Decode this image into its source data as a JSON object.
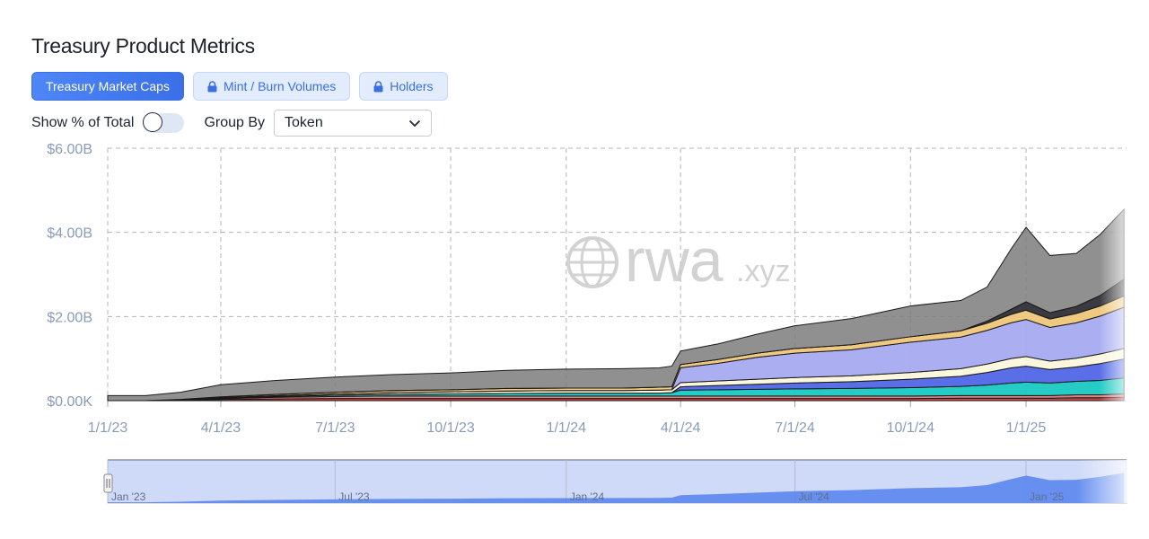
{
  "header": {
    "title": "Treasury Product Metrics"
  },
  "tabs": [
    {
      "label": "Treasury Market Caps",
      "locked": false,
      "active": true
    },
    {
      "label": "Mint / Burn Volumes",
      "locked": true,
      "active": false
    },
    {
      "label": "Holders",
      "locked": true,
      "active": false
    }
  ],
  "controls": {
    "show_pct_label": "Show % of Total",
    "show_pct_on": false,
    "group_by_label": "Group By",
    "group_by_value": "Token"
  },
  "watermark": {
    "word": "rwa",
    "suffix": ".xyz"
  },
  "colors": {
    "accent": "#3a6fe8",
    "navigator_fill": "#5b86ee",
    "grid": "#b5b5b5",
    "axis_text": "#8a9bb8"
  },
  "chart_data": {
    "type": "area",
    "stacked": true,
    "ylim": [
      0,
      6
    ],
    "yticks": [
      {
        "v": 0,
        "label": "$0.00K"
      },
      {
        "v": 2,
        "label": "$2.00B"
      },
      {
        "v": 4,
        "label": "$4.00B"
      },
      {
        "v": 6,
        "label": "$6.00B"
      }
    ],
    "xticks": [
      "1/1/23",
      "4/1/23",
      "7/1/23",
      "10/1/23",
      "1/1/24",
      "4/1/24",
      "7/1/24",
      "10/1/24",
      "1/1/25"
    ],
    "x": [
      "1/1/23",
      "1/31/23",
      "2/28/23",
      "4/1/23",
      "5/15/23",
      "7/1/23",
      "8/15/23",
      "10/1/23",
      "11/15/23",
      "1/1/24",
      "2/15/24",
      "3/15/24",
      "3/25/24",
      "4/1/24",
      "5/1/24",
      "6/1/24",
      "7/1/24",
      "8/15/24",
      "10/1/24",
      "11/10/24",
      "12/1/24",
      "12/20/24",
      "1/1/25",
      "1/20/25",
      "2/10/25",
      "3/1/25",
      "3/20/25"
    ],
    "total": [
      0.12,
      0.12,
      0.2,
      0.38,
      0.48,
      0.56,
      0.62,
      0.66,
      0.72,
      0.75,
      0.76,
      0.78,
      0.82,
      1.18,
      1.35,
      1.58,
      1.78,
      1.95,
      2.25,
      2.38,
      2.7,
      3.6,
      4.12,
      3.45,
      3.5,
      3.95,
      4.55
    ],
    "series": [
      {
        "color": "#c33b3b",
        "values": [
          0,
          0,
          0.01,
          0.03,
          0.04,
          0.05,
          0.05,
          0.05,
          0.05,
          0.05,
          0.05,
          0.05,
          0.05,
          0.05,
          0.05,
          0.05,
          0.05,
          0.05,
          0.05,
          0.06,
          0.06,
          0.06,
          0.06,
          0.06,
          0.07,
          0.07,
          0.08
        ]
      },
      {
        "color": "#e07a7a",
        "values": [
          0,
          0,
          0.01,
          0.02,
          0.04,
          0.05,
          0.06,
          0.06,
          0.06,
          0.06,
          0.06,
          0.06,
          0.06,
          0.06,
          0.06,
          0.06,
          0.06,
          0.06,
          0.06,
          0.06,
          0.06,
          0.06,
          0.06,
          0.06,
          0.07,
          0.07,
          0.08
        ]
      },
      {
        "color": "#18c9c2",
        "values": [
          0,
          0,
          0,
          0.01,
          0.02,
          0.03,
          0.04,
          0.05,
          0.06,
          0.07,
          0.07,
          0.07,
          0.08,
          0.14,
          0.15,
          0.16,
          0.17,
          0.18,
          0.2,
          0.22,
          0.25,
          0.3,
          0.32,
          0.3,
          0.32,
          0.34,
          0.38
        ]
      },
      {
        "color": "#5167e6",
        "values": [
          0,
          0,
          0,
          0,
          0,
          0,
          0,
          0,
          0,
          0,
          0,
          0,
          0,
          0.08,
          0.1,
          0.12,
          0.14,
          0.16,
          0.2,
          0.24,
          0.3,
          0.36,
          0.38,
          0.32,
          0.34,
          0.4,
          0.45
        ]
      },
      {
        "color": "#fbf6dc",
        "values": [
          0,
          0,
          0,
          0.01,
          0.02,
          0.03,
          0.04,
          0.05,
          0.06,
          0.06,
          0.06,
          0.07,
          0.07,
          0.1,
          0.11,
          0.12,
          0.13,
          0.14,
          0.16,
          0.18,
          0.2,
          0.22,
          0.23,
          0.2,
          0.21,
          0.23,
          0.25
        ]
      },
      {
        "color": "#a6abf0",
        "values": [
          0,
          0,
          0,
          0,
          0,
          0,
          0,
          0,
          0,
          0,
          0,
          0,
          0,
          0.35,
          0.42,
          0.52,
          0.58,
          0.62,
          0.72,
          0.75,
          0.8,
          0.85,
          0.88,
          0.8,
          0.84,
          0.9,
          0.98
        ]
      },
      {
        "color": "#efc67a",
        "values": [
          0,
          0,
          0.01,
          0.02,
          0.03,
          0.04,
          0.05,
          0.05,
          0.06,
          0.06,
          0.06,
          0.07,
          0.07,
          0.08,
          0.09,
          0.1,
          0.11,
          0.12,
          0.13,
          0.15,
          0.17,
          0.2,
          0.22,
          0.2,
          0.22,
          0.24,
          0.27
        ]
      },
      {
        "color": "#2f2f36",
        "values": [
          0,
          0,
          0,
          0,
          0,
          0,
          0,
          0,
          0,
          0,
          0,
          0,
          0,
          0,
          0,
          0,
          0,
          0,
          0,
          0,
          0.05,
          0.12,
          0.2,
          0.15,
          0.17,
          0.25,
          0.4
        ]
      }
    ],
    "remainder_color": "#7d7d7d"
  },
  "navigator": {
    "labels": [
      "Jan '23",
      "Jul '23",
      "Jan '24",
      "Jul '24",
      "Jan '25"
    ]
  }
}
